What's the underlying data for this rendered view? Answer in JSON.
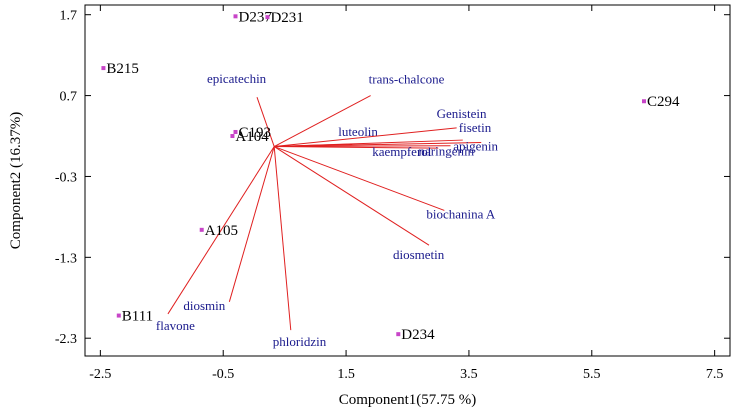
{
  "chart_data": {
    "type": "scatter",
    "xlabel": "Component1(57.75 %)",
    "ylabel": "Component2 (16.37%)",
    "xlim": [
      -2.75,
      7.75
    ],
    "ylim": [
      -2.52,
      1.82
    ],
    "xticks": [
      "-2.5",
      "-0.5",
      "1.5",
      "3.5",
      "5.5",
      "7.5"
    ],
    "yticks": [
      "1.7",
      "0.7",
      "-0.3",
      "-1.3",
      "-2.3"
    ],
    "point_color": "#c845c8",
    "vector_color": "#e02020",
    "vector_label_color": "#1a1a8c",
    "vector_origin": [
      0.33,
      0.07
    ],
    "points": [
      {
        "label": "D237",
        "x": -0.3,
        "y": 1.68
      },
      {
        "label": "D231",
        "x": 0.22,
        "y": 1.67
      },
      {
        "label": "B215",
        "x": -2.45,
        "y": 1.04
      },
      {
        "label": "C294",
        "x": 6.35,
        "y": 0.63
      },
      {
        "label": "A104",
        "x": -0.35,
        "y": 0.2
      },
      {
        "label": "C193",
        "x": -0.3,
        "y": 0.25
      },
      {
        "label": "A105",
        "x": -0.85,
        "y": -0.96
      },
      {
        "label": "B111",
        "x": -2.2,
        "y": -2.02
      },
      {
        "label": "D234",
        "x": 2.35,
        "y": -2.25
      }
    ],
    "vectors": [
      {
        "name": "epicatechin",
        "x": 0.05,
        "y": 0.68
      },
      {
        "name": "trans-chalcone",
        "x": 1.9,
        "y": 0.7
      },
      {
        "name": "luteolin",
        "x": 1.6,
        "y": 0.1
      },
      {
        "name": "Genistein",
        "x": 3.3,
        "y": 0.3
      },
      {
        "name": "fisetin",
        "x": 3.4,
        "y": 0.15
      },
      {
        "name": "kaempferol",
        "x": 3.0,
        "y": 0.05
      },
      {
        "name": "naringenin",
        "x": 3.2,
        "y": 0.08
      },
      {
        "name": "apigenin",
        "x": 3.7,
        "y": 0.12
      },
      {
        "name": "biochanina A",
        "x": 3.1,
        "y": -0.72
      },
      {
        "name": "diosmetin",
        "x": 2.85,
        "y": -1.15
      },
      {
        "name": "diosmin",
        "x": -0.4,
        "y": -1.85
      },
      {
        "name": "flavone",
        "x": -1.4,
        "y": -2.0
      },
      {
        "name": "phloridzin",
        "x": 0.6,
        "y": -2.2
      }
    ]
  }
}
